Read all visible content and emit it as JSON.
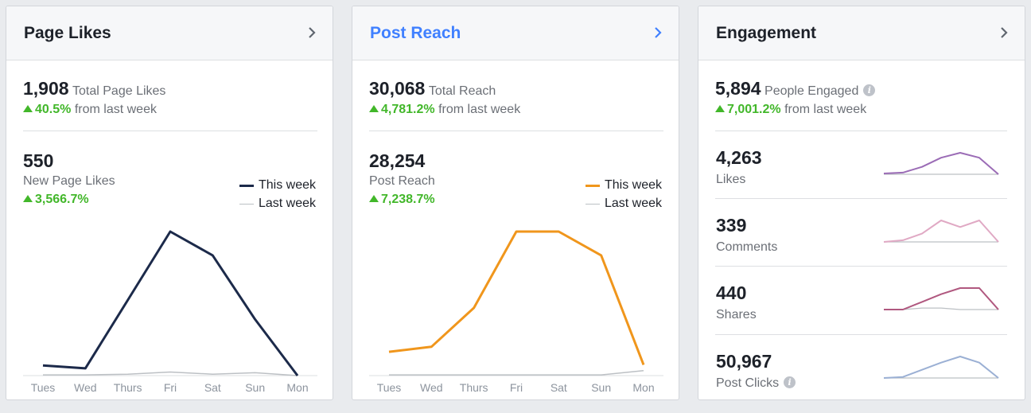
{
  "cards": {
    "page_likes": {
      "title": "Page Likes",
      "total_value": "1,908",
      "total_label": "Total Page Likes",
      "total_change": "40.5%",
      "total_change_suffix": "from last week",
      "sub_value": "550",
      "sub_label": "New Page Likes",
      "sub_change": "3,566.7%",
      "legend_this": "This week",
      "legend_last": "Last week"
    },
    "post_reach": {
      "title": "Post Reach",
      "total_value": "30,068",
      "total_label": "Total Reach",
      "total_change": "4,781.2%",
      "total_change_suffix": "from last week",
      "sub_value": "28,254",
      "sub_label": "Post Reach",
      "sub_change": "7,238.7%",
      "legend_this": "This week",
      "legend_last": "Last week"
    },
    "engagement": {
      "title": "Engagement",
      "total_value": "5,894",
      "total_label": "People Engaged",
      "total_change": "7,001.2%",
      "total_change_suffix": "from last week",
      "metrics": [
        {
          "value": "4,263",
          "label": "Likes"
        },
        {
          "value": "339",
          "label": "Comments"
        },
        {
          "value": "440",
          "label": "Shares"
        },
        {
          "value": "50,967",
          "label": "Post Clicks"
        }
      ]
    }
  },
  "colors": {
    "page_likes_line": "#1c2a4a",
    "post_reach_line": "#f0961c",
    "last_week_line": "#bcc0c4",
    "likes_spark": "#9b6cb6",
    "comments_spark": "#e0a9c4",
    "shares_spark": "#b0587f",
    "clicks_spark": "#9bb0d4",
    "positive": "#42b72a",
    "link": "#4080ff"
  },
  "chart_data": [
    {
      "type": "line",
      "title": "",
      "categories": [
        "Tues",
        "Wed",
        "Thurs",
        "Fri",
        "Sat",
        "Sun",
        "Mon"
      ],
      "series": [
        {
          "name": "This week",
          "values": [
            14,
            10,
            105,
            200,
            167,
            78,
            0
          ]
        },
        {
          "name": "Last week",
          "values": [
            1,
            1,
            2,
            5,
            2,
            4,
            0
          ]
        }
      ],
      "ylim": [
        0,
        200
      ],
      "grid": false,
      "legend": "top-right"
    },
    {
      "type": "line",
      "title": "",
      "categories": [
        "Tues",
        "Wed",
        "Thurs",
        "Fri",
        "Sat",
        "Sun",
        "Mon"
      ],
      "series": [
        {
          "name": "This week",
          "values": [
            3300,
            4000,
            9400,
            20000,
            20000,
            16700,
            1500
          ]
        },
        {
          "name": "Last week",
          "values": [
            100,
            100,
            100,
            100,
            100,
            100,
            700
          ]
        }
      ],
      "ylim": [
        0,
        20000
      ],
      "grid": false,
      "legend": "top-right"
    },
    {
      "type": "line",
      "title": "",
      "series": [
        {
          "values": [
            1,
            2,
            9,
            20,
            26,
            20,
            0
          ]
        },
        {
          "values": [
            0,
            0,
            0,
            0,
            0,
            0,
            0
          ]
        }
      ],
      "ylim": [
        0,
        26
      ]
    },
    {
      "type": "line",
      "title": "",
      "series": [
        {
          "values": [
            0,
            1,
            5,
            13,
            9,
            13,
            0
          ]
        },
        {
          "values": [
            0,
            0,
            0,
            0,
            0,
            0,
            0
          ]
        }
      ],
      "ylim": [
        0,
        13
      ]
    },
    {
      "type": "line",
      "title": "",
      "series": [
        {
          "values": [
            0,
            0,
            5,
            10,
            14,
            14,
            0
          ]
        },
        {
          "values": [
            0,
            0,
            1,
            1,
            0,
            0,
            0
          ]
        }
      ],
      "ylim": [
        0,
        14
      ]
    },
    {
      "type": "line",
      "title": "",
      "series": [
        {
          "values": [
            0,
            1,
            8,
            15,
            21,
            15,
            0
          ]
        },
        {
          "values": [
            0,
            0,
            0,
            0,
            0,
            0,
            0
          ]
        }
      ],
      "ylim": [
        0,
        21
      ]
    }
  ]
}
